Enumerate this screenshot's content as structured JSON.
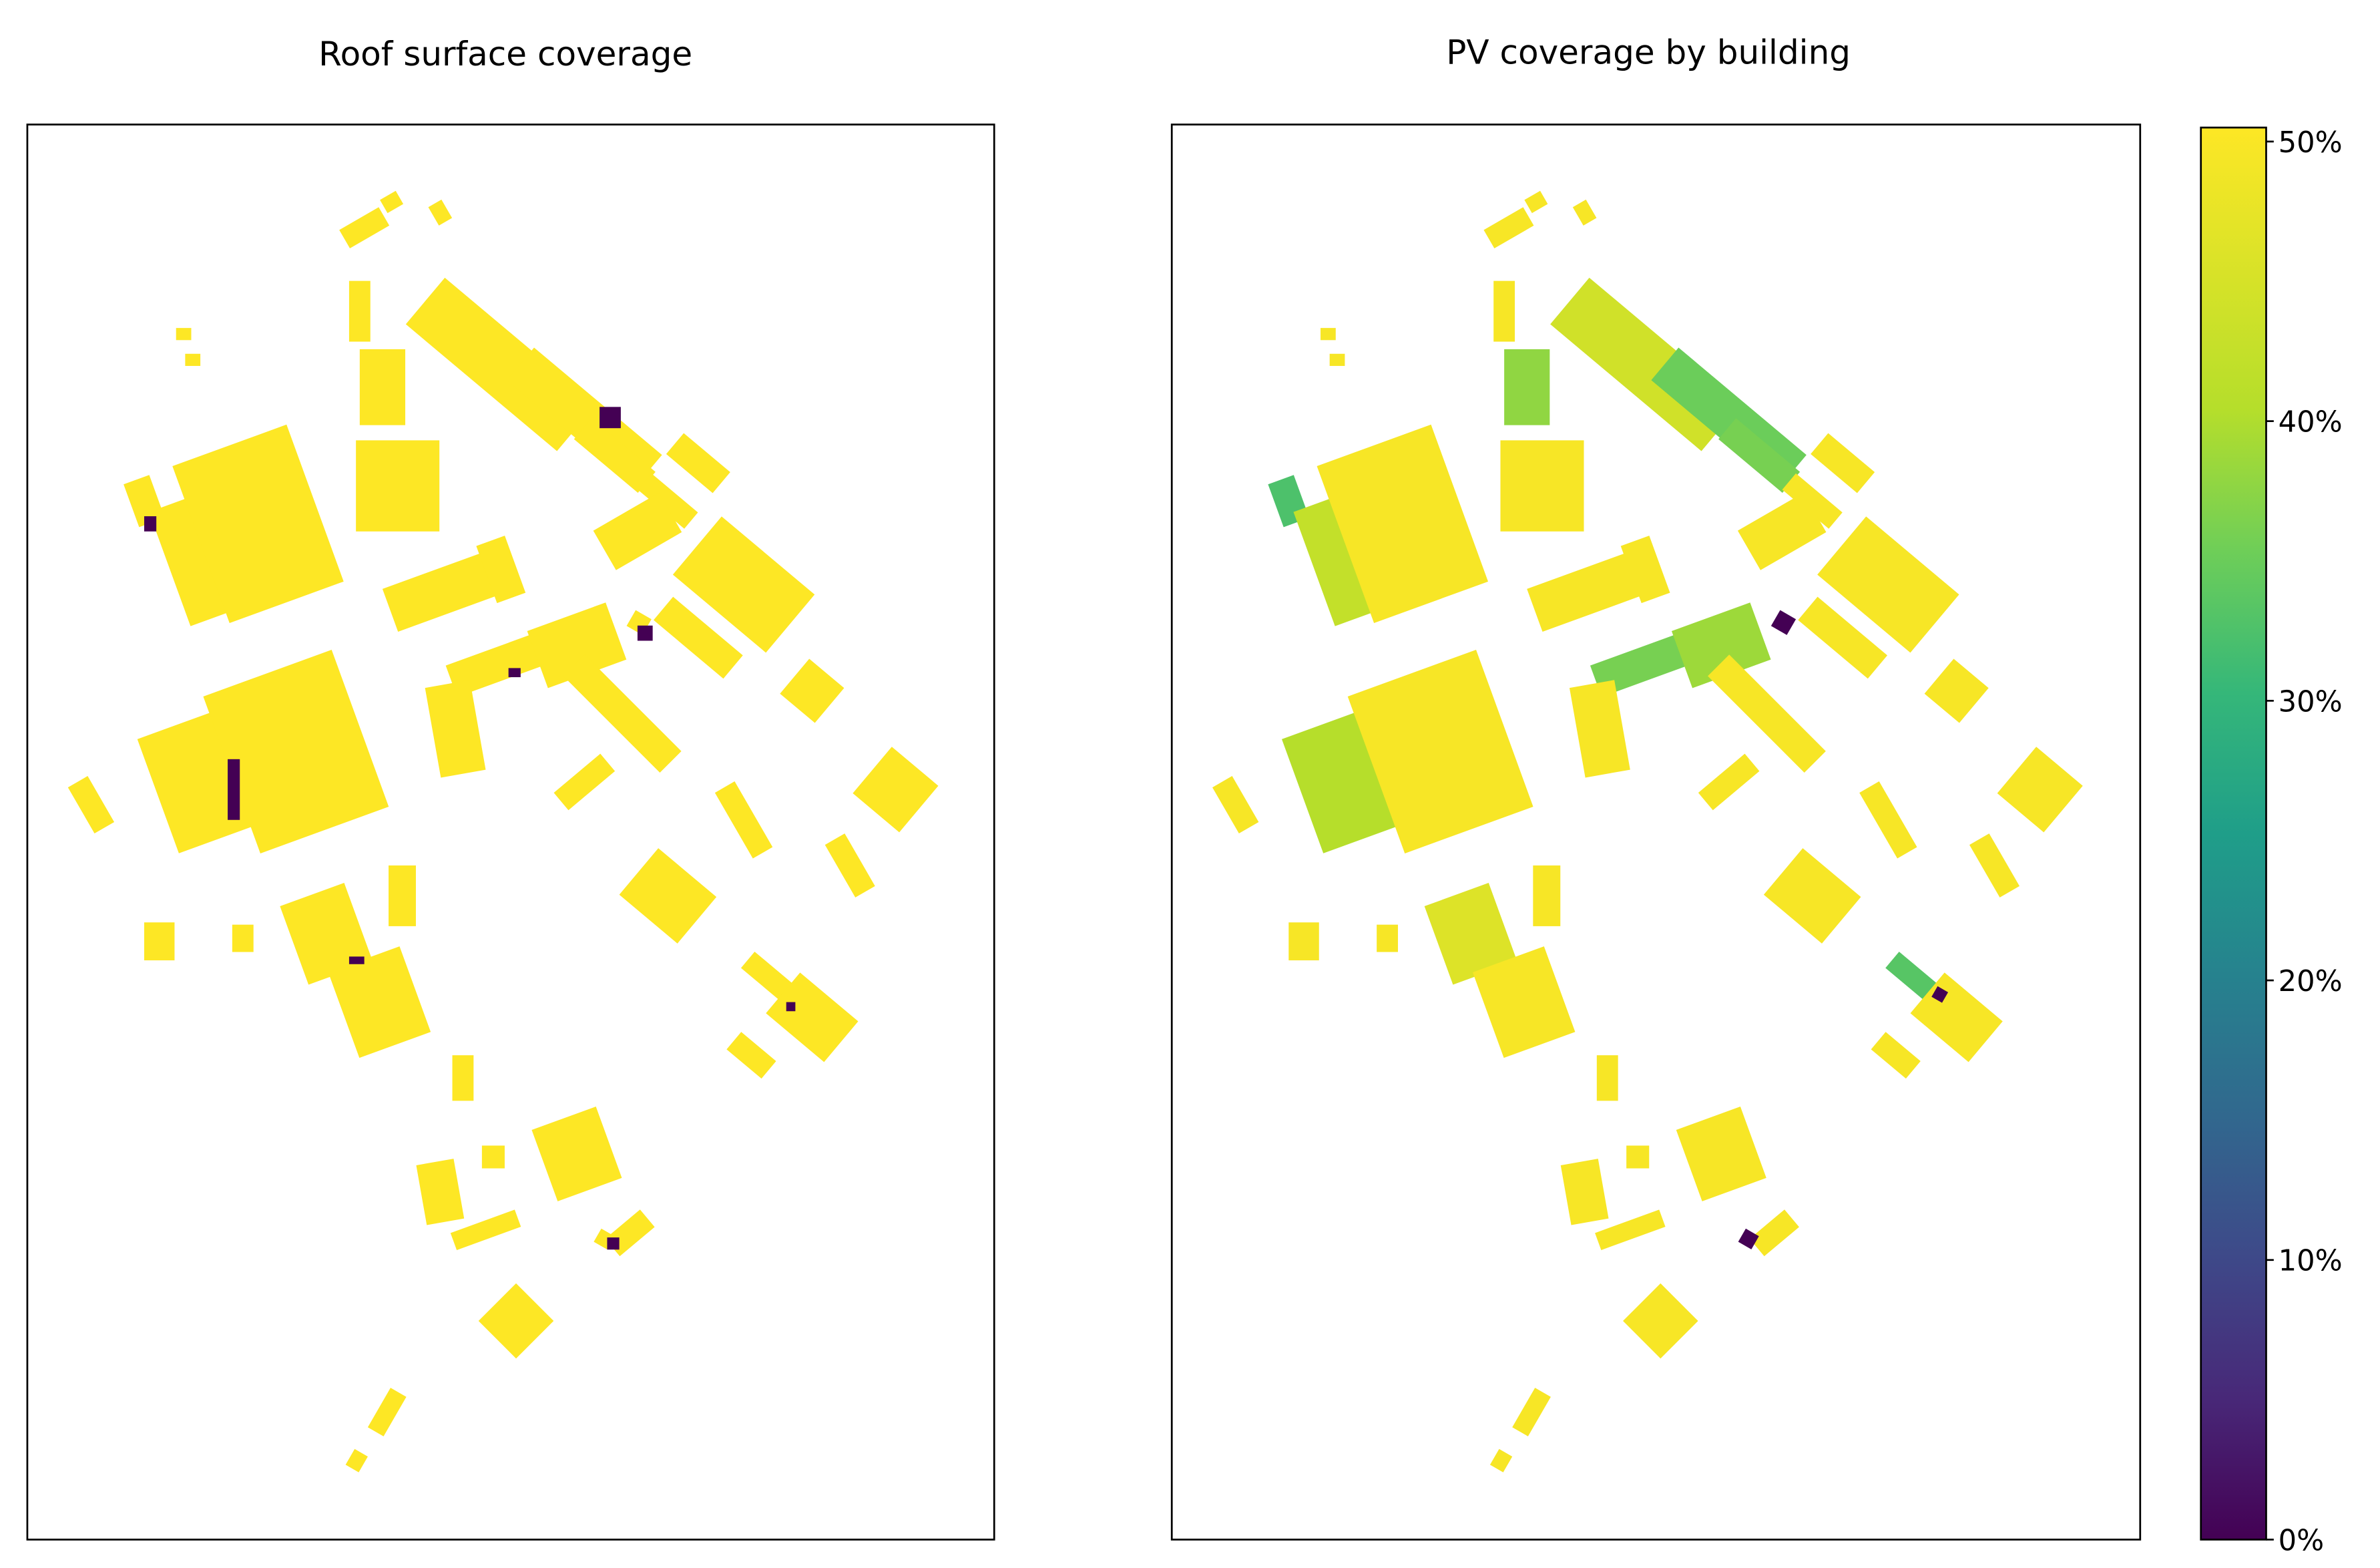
{
  "chart_data": {
    "type": "choropleth",
    "panels": [
      {
        "title": "Roof surface coverage"
      },
      {
        "title": "PV coverage by building"
      }
    ],
    "values": [
      50,
      50,
      50,
      50,
      42,
      47,
      39,
      40,
      50,
      50,
      50,
      50,
      50,
      36,
      46,
      50,
      50,
      50,
      50,
      50,
      45,
      50,
      40,
      43,
      50,
      50,
      50,
      50,
      50,
      50,
      50,
      48,
      50,
      50,
      50,
      50,
      50,
      50,
      50,
      37,
      50,
      50,
      50,
      50,
      50,
      50,
      50,
      50,
      50,
      50,
      50,
      0,
      0,
      0
    ],
    "colorbar": {
      "lim": [
        0,
        50.5
      ],
      "ticks": [
        {
          "value": 0,
          "label": "0%"
        },
        {
          "value": 10,
          "label": "10%"
        },
        {
          "value": 20,
          "label": "20%"
        },
        {
          "value": 30,
          "label": "30%"
        },
        {
          "value": 40,
          "label": "40%"
        },
        {
          "value": 50,
          "label": "50%"
        }
      ]
    }
  }
}
